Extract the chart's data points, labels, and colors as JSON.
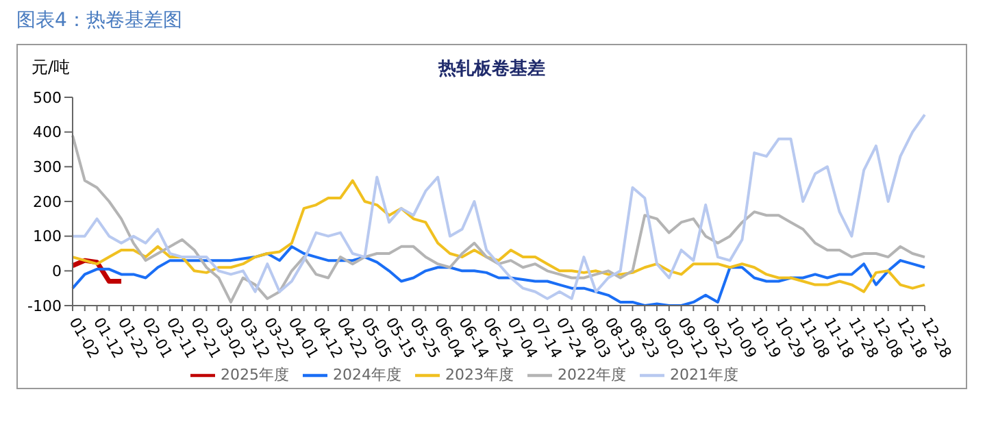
{
  "chart_data": {
    "type": "line",
    "title": "热轧板卷基差",
    "subtitle": "图表4：热卷基差图",
    "ylabel": "元/吨",
    "categories": [
      "01-02",
      null,
      "01-12",
      null,
      "01-22",
      null,
      "02-01",
      null,
      "02-11",
      null,
      "02-21",
      null,
      "03-02",
      null,
      "03-12",
      null,
      "03-22",
      null,
      "04-01",
      null,
      "04-12",
      null,
      "04-22",
      null,
      "05-05",
      null,
      "05-15",
      null,
      "05-25",
      null,
      "06-04",
      null,
      "06-14",
      null,
      "06-24",
      null,
      "07-04",
      null,
      "07-14",
      null,
      "07-24",
      null,
      "08-03",
      null,
      "08-13",
      null,
      "08-23",
      null,
      "09-02",
      null,
      "09-12",
      null,
      "09-22",
      null,
      "10-09",
      null,
      "10-19",
      null,
      "10-29",
      null,
      "11-08",
      null,
      "11-18",
      null,
      "11-28",
      null,
      "12-08",
      null,
      "12-18",
      null,
      "12-28"
    ],
    "series": [
      {
        "name": "2025年度",
        "color": "#c00000",
        "values": [
          15,
          30,
          25,
          -30,
          -30,
          null,
          null,
          null,
          null,
          null,
          null,
          null,
          null,
          null,
          null,
          null,
          null,
          null,
          null,
          null,
          null,
          null,
          null,
          null,
          null,
          null,
          null,
          null,
          null,
          null,
          null,
          null,
          null,
          null,
          null,
          null,
          null,
          null,
          null,
          null,
          null,
          null,
          null,
          null,
          null,
          null,
          null,
          null,
          null,
          null,
          null,
          null,
          null,
          null,
          null,
          null,
          null,
          null,
          null,
          null,
          null,
          null,
          null,
          null,
          null,
          null,
          null,
          null,
          null,
          null,
          null
        ]
      },
      {
        "name": "2024年度",
        "color": "#1a6ef5",
        "values": [
          -50,
          -10,
          5,
          5,
          -10,
          -10,
          -20,
          10,
          30,
          30,
          30,
          30,
          30,
          30,
          35,
          40,
          50,
          30,
          70,
          50,
          40,
          30,
          30,
          30,
          40,
          25,
          0,
          -30,
          -20,
          0,
          10,
          10,
          0,
          0,
          -5,
          -20,
          -20,
          -25,
          -30,
          -30,
          -40,
          -50,
          -50,
          -60,
          -70,
          -90,
          -90,
          -100,
          -95,
          -100,
          -100,
          -90,
          -70,
          -90,
          10,
          10,
          -20,
          -30,
          -30,
          -20,
          -20,
          -10,
          -20,
          -10,
          -10,
          20,
          -40,
          0,
          30,
          20,
          10
        ]
      },
      {
        "name": "2023年度",
        "color": "#f0c020",
        "values": [
          40,
          30,
          20,
          40,
          60,
          60,
          40,
          70,
          40,
          40,
          0,
          -5,
          10,
          10,
          20,
          40,
          50,
          55,
          80,
          180,
          190,
          210,
          210,
          260,
          200,
          190,
          160,
          180,
          150,
          140,
          80,
          50,
          40,
          60,
          40,
          30,
          60,
          40,
          40,
          20,
          0,
          0,
          -5,
          0,
          -10,
          -10,
          -5,
          10,
          20,
          0,
          -10,
          20,
          20,
          20,
          10,
          20,
          10,
          -10,
          -20,
          -20,
          -30,
          -40,
          -40,
          -30,
          -40,
          -60,
          -5,
          0,
          -40,
          -50,
          -40
        ]
      },
      {
        "name": "2022年度",
        "color": "#b4b4b4",
        "values": [
          390,
          260,
          240,
          200,
          150,
          80,
          30,
          50,
          70,
          90,
          60,
          10,
          -20,
          -90,
          -20,
          -40,
          -80,
          -60,
          0,
          40,
          -10,
          -20,
          40,
          20,
          40,
          50,
          50,
          70,
          70,
          40,
          20,
          10,
          50,
          80,
          40,
          20,
          30,
          10,
          20,
          0,
          -10,
          -20,
          -20,
          -10,
          0,
          -20,
          0,
          160,
          150,
          110,
          140,
          150,
          100,
          80,
          100,
          140,
          170,
          160,
          160,
          140,
          120,
          80,
          60,
          60,
          40,
          50,
          50,
          40,
          70,
          50,
          40
        ]
      },
      {
        "name": "2021年度",
        "color": "#b8c9f0",
        "values": [
          100,
          100,
          150,
          100,
          80,
          100,
          80,
          120,
          50,
          40,
          40,
          40,
          0,
          -10,
          0,
          -60,
          20,
          -60,
          -30,
          30,
          110,
          100,
          110,
          50,
          40,
          270,
          140,
          180,
          160,
          230,
          270,
          100,
          120,
          200,
          60,
          20,
          -20,
          -50,
          -60,
          -80,
          -60,
          -80,
          40,
          -60,
          -20,
          0,
          240,
          210,
          20,
          -20,
          60,
          30,
          190,
          40,
          30,
          90,
          340,
          330,
          380,
          380,
          200,
          280,
          300,
          170,
          100,
          290,
          360,
          200,
          330,
          400,
          450
        ]
      }
    ],
    "ylim": [
      -100,
      500
    ],
    "yticks": [
      -100,
      0,
      100,
      200,
      300,
      400,
      500
    ],
    "legend": "bottom",
    "marker": "none",
    "line_style": "solid"
  }
}
